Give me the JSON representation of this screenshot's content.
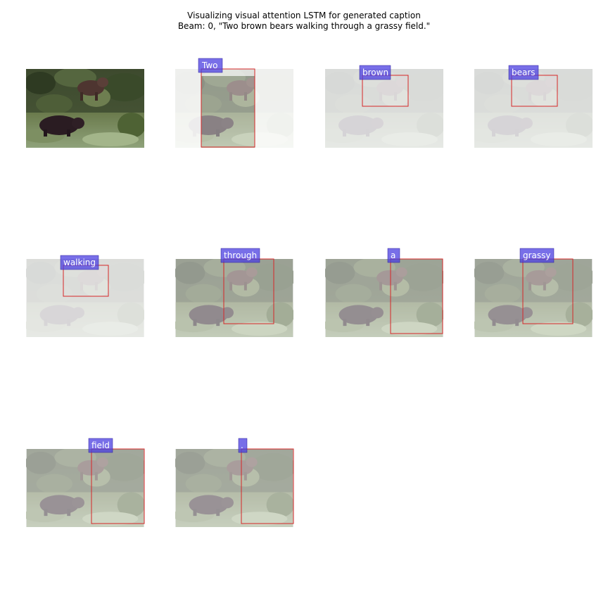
{
  "figure": {
    "title_line1": "Visualizing visual attention LSTM for generated caption",
    "title_line2": "Beam: 0, \"Two brown bears walking through a grassy field.\""
  },
  "colors": {
    "attention_box": "#d62728",
    "word_label_bg": "#4b3fe0",
    "word_label_text": "#ffffff"
  },
  "chart_data": {
    "type": "image-grid",
    "title": "Visualizing visual attention LSTM for generated caption",
    "subtitle": "Beam: 0, \"Two brown bears walking through a grassy field.\"",
    "panels": [
      {
        "word": null,
        "original_image": true
      },
      {
        "word": "Two"
      },
      {
        "word": "brown"
      },
      {
        "word": "bears"
      },
      {
        "word": "walking"
      },
      {
        "word": "through"
      },
      {
        "word": "a"
      },
      {
        "word": "grassy"
      },
      {
        "word": "field"
      },
      {
        "word": "."
      }
    ]
  }
}
